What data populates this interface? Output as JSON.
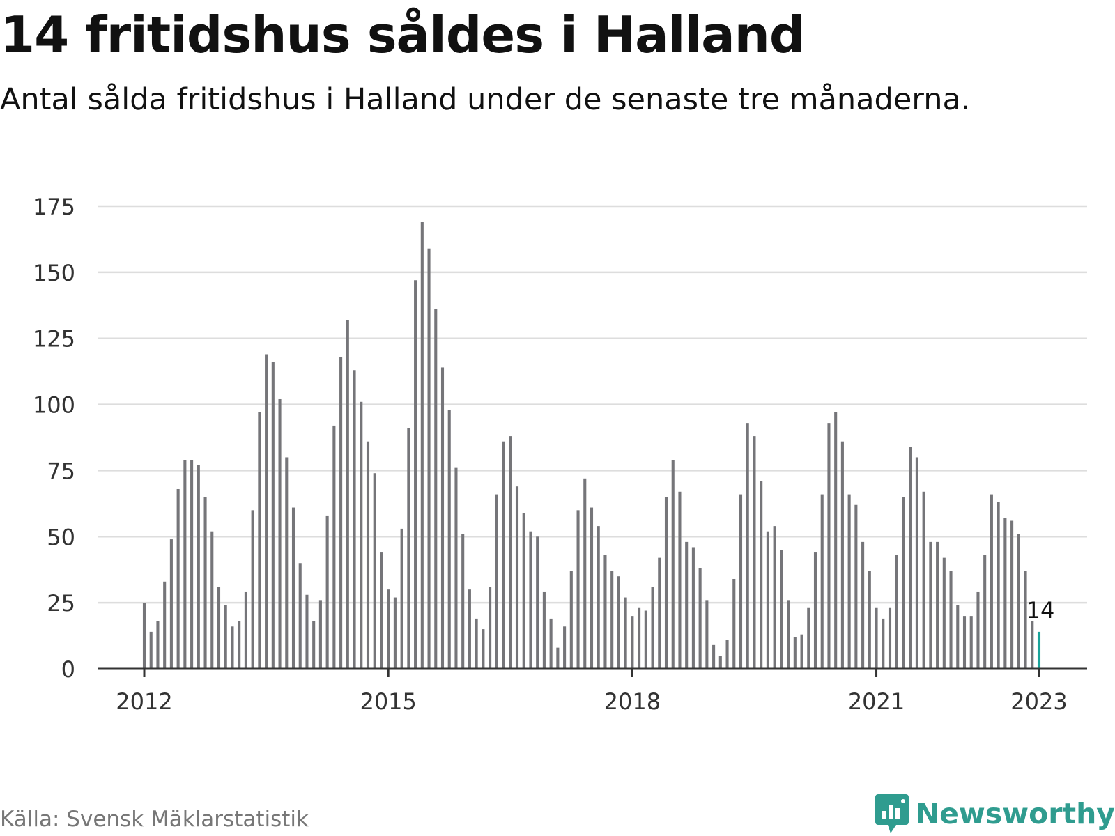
{
  "title": "14 fritidshus såldes i Halland",
  "subtitle": "Antal sålda fritidshus i Halland under de senaste tre månaderna.",
  "source": "Källa: Svensk Mäklarstatistik",
  "brand": {
    "name": "Newsworthy",
    "icon": "newsworthy-logo-icon",
    "color": "#2f9c8f"
  },
  "colors": {
    "bar": "#757579",
    "highlight": "#1aa39a",
    "grid": "#dddddd",
    "axis": "#333333"
  },
  "chart_data": {
    "type": "bar",
    "x_start": "2012-01",
    "x_end": "2023-01",
    "x_ticks": [
      "2012",
      "2015",
      "2018",
      "2021",
      "2023"
    ],
    "y_ticks": [
      "0",
      "25",
      "50",
      "75",
      "100",
      "125",
      "150",
      "175"
    ],
    "ylim": [
      0,
      175
    ],
    "values": [
      25,
      14,
      18,
      33,
      49,
      68,
      79,
      79,
      77,
      65,
      52,
      31,
      24,
      16,
      18,
      29,
      60,
      97,
      119,
      116,
      102,
      80,
      61,
      40,
      28,
      18,
      26,
      58,
      92,
      118,
      132,
      113,
      101,
      86,
      74,
      44,
      30,
      27,
      53,
      91,
      147,
      169,
      159,
      136,
      114,
      98,
      76,
      51,
      30,
      19,
      15,
      31,
      66,
      86,
      88,
      69,
      59,
      52,
      50,
      29,
      19,
      8,
      16,
      37,
      60,
      72,
      61,
      54,
      43,
      37,
      35,
      27,
      20,
      23,
      22,
      31,
      42,
      65,
      79,
      67,
      48,
      46,
      38,
      26,
      9,
      5,
      11,
      34,
      66,
      93,
      88,
      71,
      52,
      54,
      45,
      26,
      12,
      13,
      23,
      44,
      66,
      93,
      97,
      86,
      66,
      62,
      48,
      37,
      23,
      19,
      23,
      43,
      65,
      84,
      80,
      67,
      48,
      48,
      42,
      37,
      24,
      20,
      20,
      29,
      43,
      66,
      63,
      57,
      56,
      51,
      37,
      18,
      14
    ],
    "highlight_label": "14",
    "grid": true
  }
}
